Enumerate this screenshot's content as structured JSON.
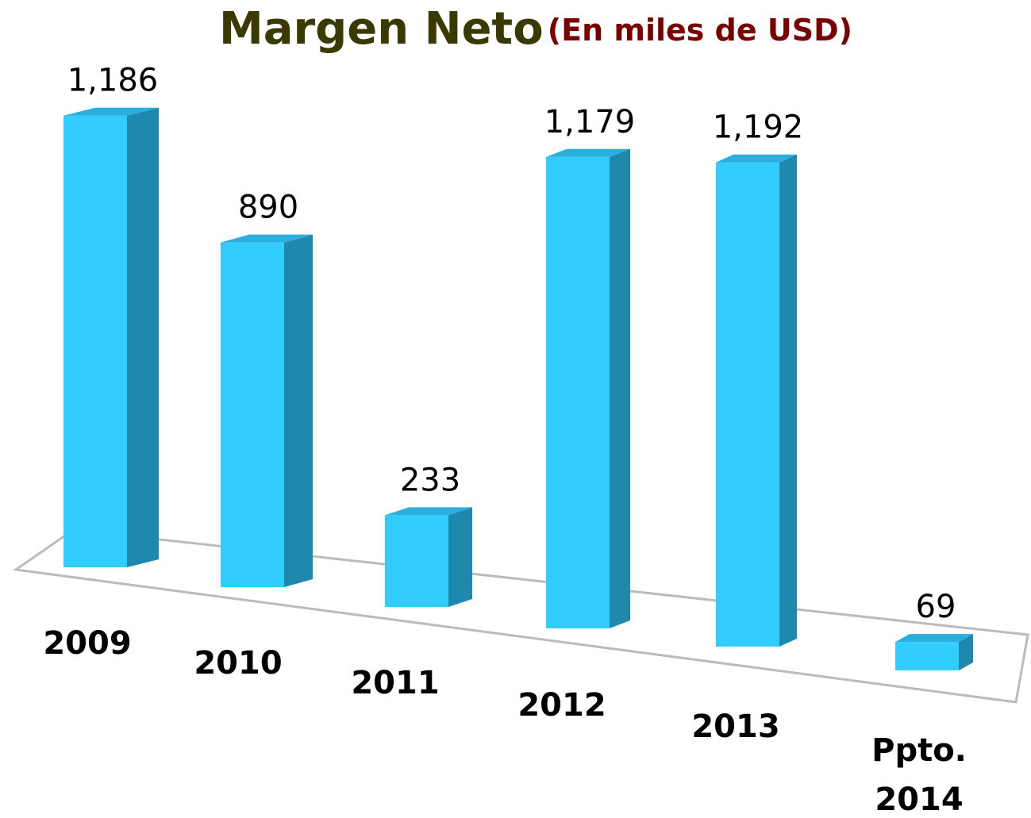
{
  "chart_data": {
    "type": "bar3d",
    "title": "Margen Neto",
    "subtitle": "(En miles de USD)",
    "categories": [
      "2009",
      "2010",
      "2011",
      "2012",
      "2013",
      "Ppto. 2014"
    ],
    "values": [
      1186,
      890,
      233,
      1179,
      1192,
      69
    ],
    "value_labels": [
      "1,186",
      "890",
      "233",
      "1,179",
      "1,192",
      "69"
    ],
    "color": "#33ccff"
  }
}
